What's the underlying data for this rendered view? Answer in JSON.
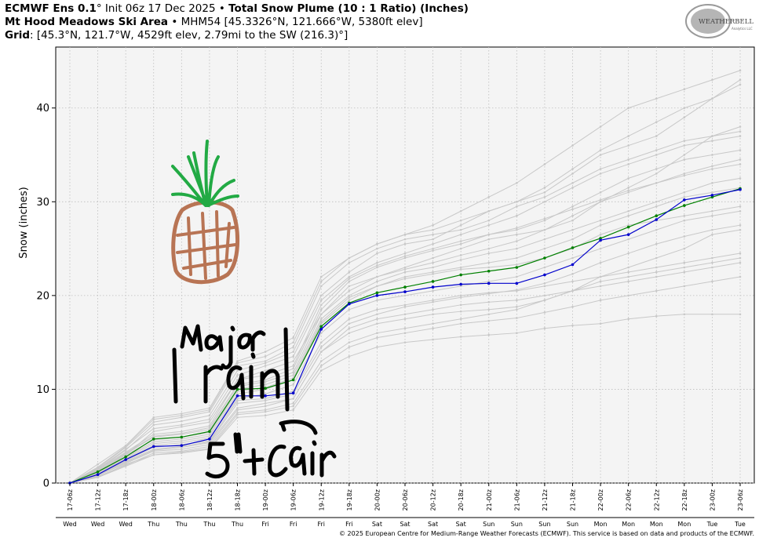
{
  "header": {
    "line1": {
      "model": "ECMWF Ens 0.1",
      "degree": "°",
      "init": " Init 06z 17 Dec 2025 • ",
      "product": "Total Snow Plume (10 : 1 Ratio) (Inches)"
    },
    "line2": {
      "location": "Mt Hood Meadows Ski Area",
      "details": " • MHM54 [45.3326°N, 121.666°W, 5380ft elev]"
    },
    "line3": {
      "label": "Grid",
      "details": ": [45.3°N, 121.7°W, 4529ft elev, 2.79mi to the SW (216.3)°]"
    }
  },
  "logo": {
    "text": "WEATHERBELL",
    "sub": "Analytics LLC"
  },
  "copyright": "© 2025 European Centre for Medium-Range Weather Forecasts (ECMWF). This service is based on data and products of the ECMWF.",
  "annotations": [
    {
      "text": "major rain",
      "color": "#000000"
    },
    {
      "text": "5\" + rain",
      "color": "#000000"
    },
    {
      "text": "pineapple-drawing",
      "color": "#b87454"
    }
  ],
  "chart_data": {
    "type": "line",
    "ylabel": "Snow (inches)",
    "ylim": [
      0,
      46.5
    ],
    "yticks": [
      0,
      10,
      20,
      30,
      40
    ],
    "grid": true,
    "x": [
      "17-06z",
      "17-12z",
      "17-18z",
      "18-00z",
      "18-06z",
      "18-12z",
      "18-18z",
      "19-00z",
      "19-06z",
      "19-12z",
      "19-18z",
      "20-00z",
      "20-06z",
      "20-12z",
      "20-18z",
      "21-00z",
      "21-06z",
      "21-12z",
      "21-18z",
      "22-00z",
      "22-06z",
      "22-12z",
      "22-18z",
      "23-00z",
      "23-06z"
    ],
    "day_labels": [
      "Wed",
      "Wed",
      "Wed",
      "Thu",
      "Thu",
      "Thu",
      "Thu",
      "Fri",
      "Fri",
      "Fri",
      "Fri",
      "Sat",
      "Sat",
      "Sat",
      "Sat",
      "Sun",
      "Sun",
      "Sun",
      "Sun",
      "Mon",
      "Mon",
      "Mon",
      "Mon",
      "Tue",
      "Tue"
    ],
    "colors": {
      "members": "#c8c8c8",
      "mean": "#0000cc",
      "control": "#008000"
    },
    "series": [
      {
        "name": "",
        "role": "mean",
        "values": [
          0,
          0.9,
          2.5,
          3.9,
          4.0,
          4.7,
          9.3,
          9.3,
          9.6,
          16.4,
          19.1,
          20.0,
          20.4,
          20.9,
          21.2,
          21.3,
          21.3,
          22.2,
          23.3,
          25.9,
          26.5,
          28.1,
          30.2,
          30.7,
          31.3
        ]
      },
      {
        "name": "",
        "role": "control",
        "values": [
          0,
          1.2,
          2.8,
          4.7,
          4.9,
          5.5,
          10.0,
          10.1,
          11.0,
          16.7,
          19.2,
          20.3,
          20.9,
          21.5,
          22.2,
          22.6,
          23.0,
          24.0,
          25.1,
          26.1,
          27.3,
          28.5,
          29.6,
          30.5,
          31.4
        ]
      }
    ],
    "members": [
      [
        0,
        1.0,
        3.0,
        5.5,
        6.0,
        6.5,
        11.0,
        12.0,
        13.0,
        18.0,
        21.0,
        22.0,
        23.0,
        24.0,
        25.0,
        26.0,
        26.5,
        27.0,
        28.0,
        30.0,
        31.5,
        33.0,
        35.0,
        37.0,
        38.0
      ],
      [
        0,
        1.4,
        3.5,
        6.2,
        6.6,
        7.2,
        12.0,
        12.8,
        14.0,
        20.0,
        22.5,
        24.5,
        25.5,
        26.0,
        27.5,
        29.0,
        30.0,
        31.0,
        33.0,
        35.0,
        36.0,
        37.0,
        39.0,
        41.0,
        43.0
      ],
      [
        0,
        2.0,
        4.0,
        7.0,
        7.4,
        8.0,
        13.0,
        14.0,
        15.5,
        22.0,
        24.0,
        25.5,
        26.5,
        27.5,
        29.0,
        30.5,
        32.0,
        34.0,
        36.0,
        38.0,
        40.0,
        41.0,
        42.0,
        43.0,
        44.0
      ],
      [
        0,
        0.8,
        2.2,
        3.5,
        3.8,
        4.3,
        8.0,
        8.5,
        9.0,
        14.0,
        16.0,
        17.0,
        17.5,
        18.0,
        18.3,
        18.5,
        18.8,
        19.5,
        20.5,
        22.0,
        23.0,
        24.0,
        25.0,
        26.5,
        27.0
      ],
      [
        0,
        0.6,
        2.0,
        3.0,
        3.2,
        3.6,
        7.0,
        7.2,
        7.8,
        12.0,
        13.5,
        14.5,
        15.0,
        15.3,
        15.6,
        15.8,
        16.0,
        16.5,
        16.8,
        17.0,
        17.5,
        17.8,
        18.0,
        18.0,
        18.0
      ],
      [
        0,
        1.6,
        3.8,
        6.5,
        7.0,
        7.6,
        12.5,
        13.0,
        14.5,
        21.0,
        23.5,
        25.0,
        26.0,
        26.5,
        27.0,
        28.0,
        29.5,
        30.5,
        32.0,
        33.5,
        34.5,
        35.5,
        36.5,
        37.0,
        37.5
      ],
      [
        0,
        1.1,
        2.7,
        4.2,
        4.5,
        5.0,
        9.5,
        10.0,
        11.0,
        17.0,
        19.5,
        21.0,
        22.0,
        22.5,
        23.0,
        23.5,
        24.0,
        25.0,
        26.0,
        27.5,
        28.5,
        29.5,
        30.5,
        31.0,
        31.5
      ],
      [
        0,
        0.9,
        2.4,
        3.8,
        4.1,
        4.5,
        8.8,
        9.0,
        9.8,
        15.0,
        17.5,
        18.5,
        19.0,
        19.5,
        20.0,
        20.3,
        20.5,
        21.0,
        21.5,
        22.0,
        22.5,
        23.0,
        23.5,
        24.0,
        24.5
      ],
      [
        0,
        1.3,
        3.2,
        5.0,
        5.3,
        5.9,
        10.5,
        11.0,
        12.2,
        18.5,
        21.5,
        23.0,
        24.0,
        24.8,
        25.5,
        26.5,
        27.0,
        28.0,
        29.5,
        31.0,
        32.5,
        33.5,
        34.5,
        35.0,
        35.5
      ],
      [
        0,
        0.7,
        1.9,
        3.2,
        3.4,
        3.9,
        7.5,
        7.8,
        8.5,
        13.0,
        15.0,
        16.0,
        16.5,
        17.0,
        17.5,
        18.0,
        18.5,
        19.5,
        20.5,
        21.5,
        22.0,
        22.5,
        23.0,
        23.5,
        24.0
      ],
      [
        0,
        1.5,
        3.6,
        5.8,
        6.2,
        6.8,
        11.5,
        12.5,
        13.5,
        19.5,
        22.0,
        23.5,
        24.5,
        25.5,
        26.5,
        27.5,
        28.5,
        30.0,
        31.5,
        33.0,
        34.0,
        35.0,
        36.0,
        36.5,
        37.0
      ],
      [
        0,
        1.0,
        2.6,
        4.0,
        4.3,
        4.8,
        9.0,
        9.5,
        10.5,
        16.0,
        18.5,
        19.5,
        20.0,
        20.5,
        21.0,
        21.5,
        22.0,
        23.0,
        24.0,
        25.0,
        26.0,
        27.0,
        28.0,
        28.5,
        29.0
      ],
      [
        0,
        1.2,
        3.0,
        4.6,
        4.9,
        5.4,
        10.0,
        10.5,
        11.5,
        17.5,
        20.0,
        21.5,
        22.5,
        23.0,
        23.8,
        24.5,
        25.0,
        26.0,
        27.0,
        28.0,
        29.0,
        30.0,
        31.0,
        32.0,
        32.5
      ],
      [
        0,
        0.8,
        2.1,
        3.4,
        3.6,
        4.1,
        7.8,
        8.2,
        9.0,
        14.0,
        16.5,
        17.5,
        18.0,
        18.5,
        19.0,
        19.3,
        19.5,
        20.0,
        20.5,
        21.0,
        21.5,
        22.0,
        22.5,
        23.0,
        23.5
      ],
      [
        0,
        1.7,
        3.9,
        6.8,
        7.2,
        7.8,
        12.8,
        13.5,
        15.0,
        21.5,
        24.0,
        25.5,
        26.5,
        27.0,
        28.0,
        29.0,
        30.0,
        31.5,
        33.5,
        35.5,
        37.0,
        38.5,
        40.0,
        41.0,
        42.5
      ],
      [
        0,
        1.1,
        2.8,
        4.4,
        4.7,
        5.2,
        9.8,
        10.2,
        11.2,
        17.2,
        19.8,
        21.0,
        21.8,
        22.3,
        22.8,
        23.0,
        23.3,
        24.0,
        25.0,
        26.5,
        27.5,
        28.0,
        28.5,
        29.0,
        29.5
      ],
      [
        0,
        0.9,
        2.3,
        3.6,
        3.9,
        4.4,
        8.5,
        8.8,
        9.5,
        14.5,
        17.0,
        18.0,
        18.8,
        19.3,
        19.8,
        20.2,
        20.6,
        21.3,
        22.3,
        23.5,
        24.5,
        25.5,
        26.3,
        27.0,
        27.5
      ],
      [
        0,
        1.4,
        3.3,
        5.2,
        5.5,
        6.1,
        11.0,
        11.5,
        12.5,
        19.0,
        21.8,
        23.2,
        24.2,
        25.0,
        25.8,
        26.5,
        27.2,
        28.2,
        29.2,
        30.2,
        31.2,
        32.0,
        32.8,
        33.5,
        34.0
      ],
      [
        0,
        0.6,
        1.8,
        3.0,
        3.3,
        3.7,
        7.3,
        7.6,
        8.2,
        12.5,
        14.5,
        15.5,
        16.0,
        16.5,
        17.0,
        17.3,
        17.6,
        18.2,
        18.8,
        19.5,
        20.0,
        20.5,
        21.0,
        21.5,
        22.0
      ],
      [
        0,
        1.3,
        3.1,
        4.9,
        5.2,
        5.7,
        10.3,
        10.8,
        11.8,
        18.0,
        20.5,
        22.0,
        22.8,
        23.5,
        24.3,
        25.0,
        25.8,
        27.0,
        28.5,
        30.0,
        31.0,
        32.0,
        33.0,
        33.8,
        34.5
      ]
    ]
  }
}
